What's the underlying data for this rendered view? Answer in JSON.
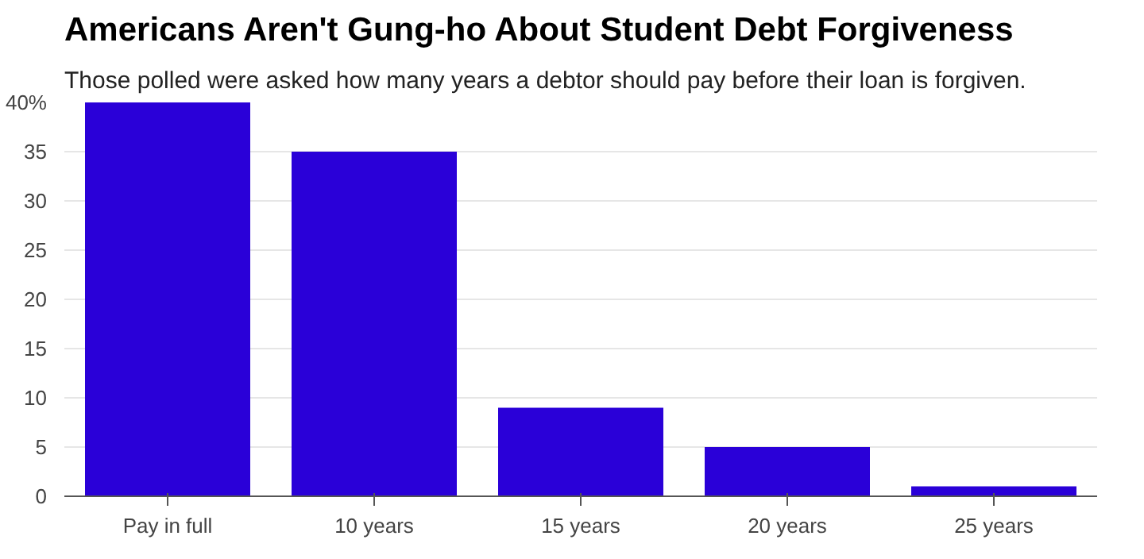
{
  "chart_data": {
    "type": "bar",
    "title": "Americans Aren't Gung-ho About Student Debt Forgiveness",
    "subtitle": "Those polled were asked how many years a debtor should pay before their loan is forgiven.",
    "categories": [
      "Pay in full",
      "10 years",
      "15 years",
      "20 years",
      "25 years"
    ],
    "values": [
      40,
      35,
      9,
      5,
      1
    ],
    "color": "#2a00d8",
    "ylim": [
      0,
      40
    ],
    "yticks": [
      0,
      5,
      10,
      15,
      20,
      25,
      30,
      35,
      {
        "value": 40,
        "label": "40%"
      }
    ],
    "grid": "y"
  }
}
